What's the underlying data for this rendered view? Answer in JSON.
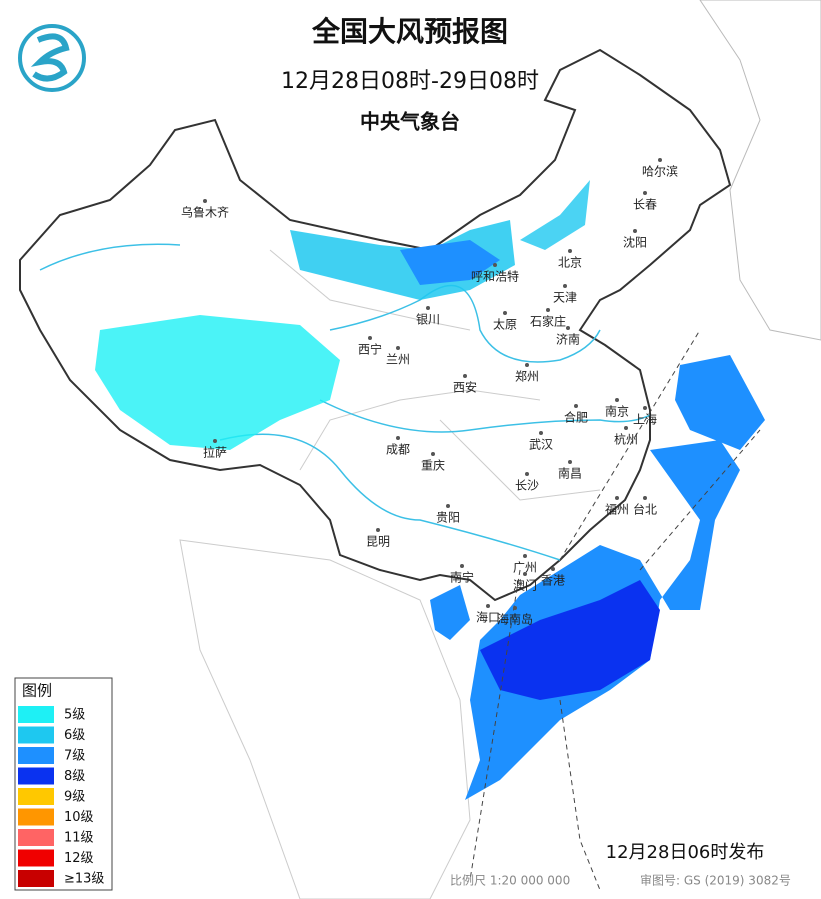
{
  "header": {
    "title": "全国大风预报图",
    "period": "12月28日08时-29日08时",
    "issuer": "中央气象台"
  },
  "legend": {
    "title": "图例",
    "items": [
      {
        "label": "5级",
        "color": "#1ef0f5"
      },
      {
        "label": "6级",
        "color": "#1ec8f0"
      },
      {
        "label": "7级",
        "color": "#1e90ff"
      },
      {
        "label": "8级",
        "color": "#0a32f0"
      },
      {
        "label": "9级",
        "color": "#ffc800"
      },
      {
        "label": "10级",
        "color": "#ff9600"
      },
      {
        "label": "11级",
        "color": "#ff6464"
      },
      {
        "label": "12级",
        "color": "#f00000"
      },
      {
        "label": "≥13级",
        "color": "#c80000"
      }
    ]
  },
  "cities": [
    "乌鲁木齐",
    "哈尔滨",
    "长春",
    "沈阳",
    "北京",
    "天津",
    "呼和浩特",
    "银川",
    "太原",
    "石家庄",
    "济南",
    "西宁",
    "兰州",
    "西安",
    "郑州",
    "合肥",
    "南京",
    "上海",
    "杭州",
    "成都",
    "武汉",
    "重庆",
    "南昌",
    "长沙",
    "拉萨",
    "贵阳",
    "福州",
    "台北",
    "昆明",
    "南宁",
    "广州",
    "澳门",
    "香港",
    "海口",
    "海南岛"
  ],
  "footer": {
    "issued": "12月28日06时发布",
    "scale": "比例尺 1:20 000 000",
    "approval": "审图号: GS (2019) 3082号"
  }
}
